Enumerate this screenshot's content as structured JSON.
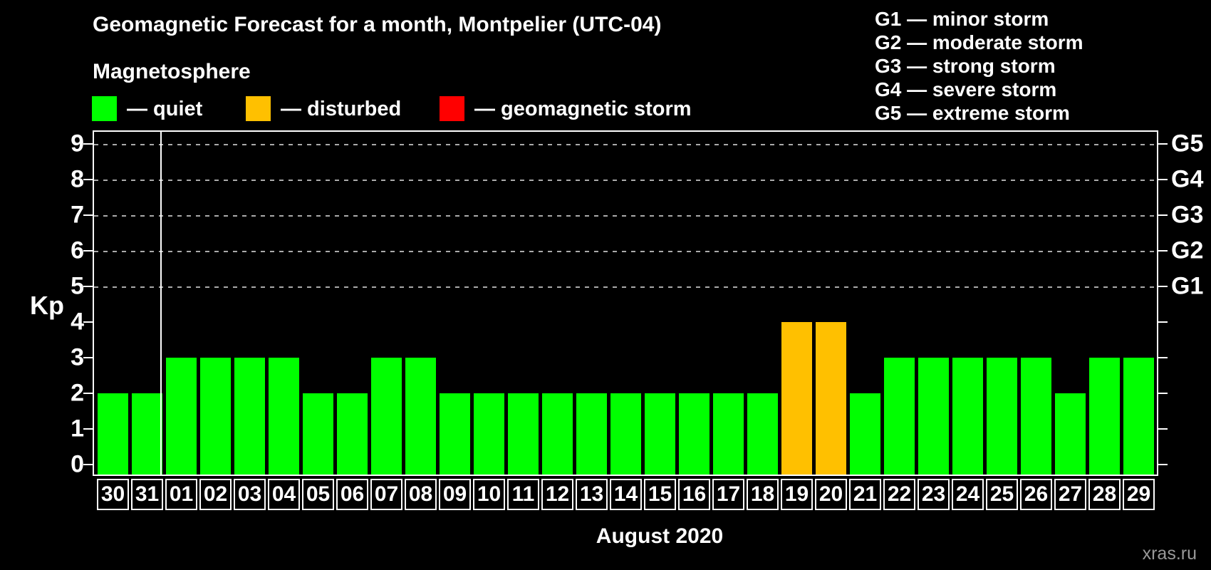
{
  "header": {
    "title": "Geomagnetic Forecast for a month, Montpelier (UTC-04)",
    "subtitle": "Magnetosphere"
  },
  "legend": {
    "items": [
      {
        "key": "quiet",
        "swatch": "#00ff00",
        "label": "— quiet"
      },
      {
        "key": "disturbed",
        "swatch": "#ffc000",
        "label": "— disturbed"
      },
      {
        "key": "storm",
        "swatch": "#ff0000",
        "label": "— geomagnetic storm"
      }
    ]
  },
  "g_legend": [
    "G1 — minor storm",
    "G2 — moderate storm",
    "G3 — strong storm",
    "G4 — severe storm",
    "G5 — extreme storm"
  ],
  "chart_data": {
    "type": "bar",
    "title": "Geomagnetic Forecast for a month, Montpelier (UTC-04)",
    "ylabel": "Kp",
    "xlabel": "August 2020",
    "ylim": [
      0,
      9
    ],
    "y_ticks": [
      0,
      1,
      2,
      3,
      4,
      5,
      6,
      7,
      8,
      9
    ],
    "gridline_kp": [
      5,
      6,
      7,
      8,
      9
    ],
    "grid": "dashed horizontal at Kp 5-9 only",
    "right_axis": [
      {
        "kp": 5,
        "label": "G1"
      },
      {
        "kp": 6,
        "label": "G2"
      },
      {
        "kp": 7,
        "label": "G3"
      },
      {
        "kp": 8,
        "label": "G4"
      },
      {
        "kp": 9,
        "label": "G5"
      }
    ],
    "categories": [
      "30",
      "31",
      "01",
      "02",
      "03",
      "04",
      "05",
      "06",
      "07",
      "08",
      "09",
      "10",
      "11",
      "12",
      "13",
      "14",
      "15",
      "16",
      "17",
      "18",
      "19",
      "20",
      "21",
      "22",
      "23",
      "24",
      "25",
      "26",
      "27",
      "28",
      "29"
    ],
    "values": [
      2,
      2,
      3,
      3,
      3,
      3,
      2,
      2,
      3,
      3,
      2,
      2,
      2,
      2,
      2,
      2,
      2,
      2,
      2,
      2,
      4,
      4,
      2,
      3,
      3,
      3,
      3,
      3,
      2,
      3,
      3
    ],
    "states": [
      "quiet",
      "quiet",
      "quiet",
      "quiet",
      "quiet",
      "quiet",
      "quiet",
      "quiet",
      "quiet",
      "quiet",
      "quiet",
      "quiet",
      "quiet",
      "quiet",
      "quiet",
      "quiet",
      "quiet",
      "quiet",
      "quiet",
      "quiet",
      "disturbed",
      "disturbed",
      "quiet",
      "quiet",
      "quiet",
      "quiet",
      "quiet",
      "quiet",
      "quiet",
      "quiet",
      "quiet"
    ],
    "state_colors": {
      "quiet": "#00ff00",
      "disturbed": "#ffc000",
      "storm": "#ff0000"
    },
    "month_divider_after_index": 1
  },
  "axis": {
    "kp_label": "Kp"
  },
  "footer": {
    "month_label": "August 2020",
    "watermark": "xras.ru"
  },
  "colors": {
    "background": "#000000",
    "text": "#ffffff",
    "grid": "#aaaaaa",
    "watermark": "#999999",
    "quiet": "#00ff00",
    "disturbed": "#ffc000",
    "storm": "#ff0000"
  }
}
